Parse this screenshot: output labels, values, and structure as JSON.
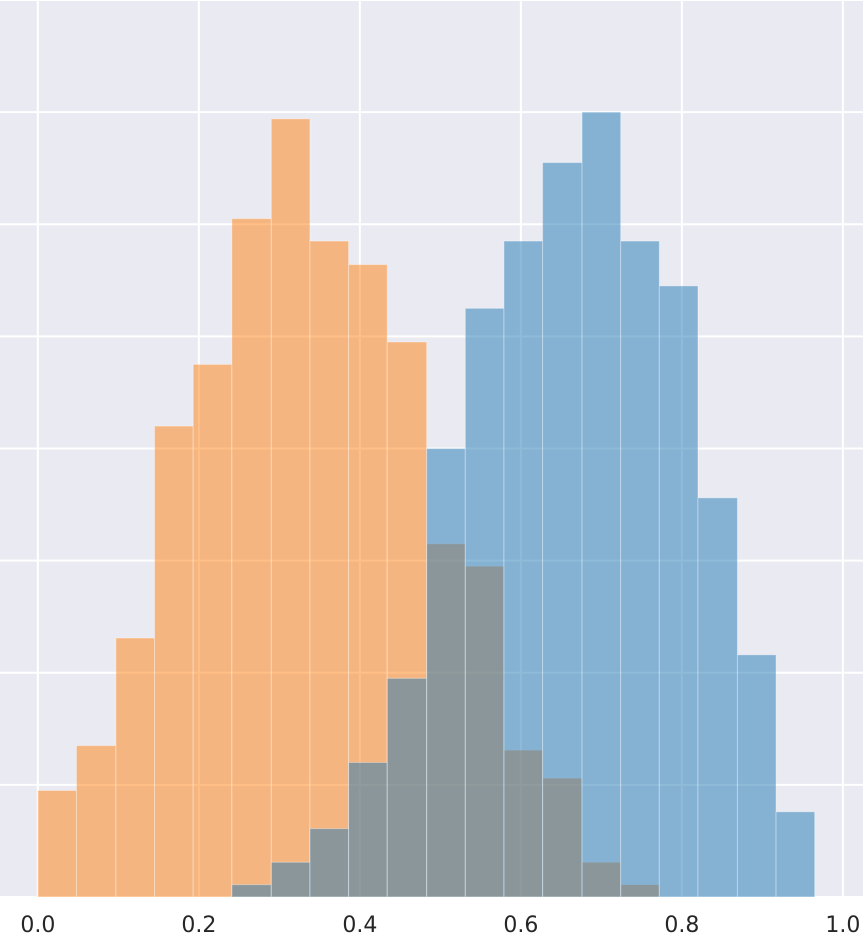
{
  "chart_data": {
    "type": "histogram",
    "bins": [
      0,
      0.048,
      0.097,
      0.145,
      0.193,
      0.241,
      0.29,
      0.338,
      0.386,
      0.434,
      0.483,
      0.531,
      0.579,
      0.627,
      0.676,
      0.724,
      0.772,
      0.82,
      0.869,
      0.917,
      0.965
    ],
    "series": [
      {
        "color": "#ff7f0e",
        "values": [
          9.5,
          13.5,
          23.1,
          42,
          47.5,
          60.5,
          69.4,
          58.5,
          56.4,
          49.5,
          31.5,
          29.5,
          13.1,
          10.6,
          3.1,
          1.1,
          0,
          0,
          0,
          0
        ]
      },
      {
        "color": "#1f77b4",
        "values": [
          0,
          0,
          0,
          0,
          0,
          1.1,
          3.1,
          6.1,
          12,
          19.5,
          40,
          52.5,
          58.5,
          65.5,
          70,
          58.5,
          54.5,
          35.6,
          21.6,
          7.6
        ]
      }
    ],
    "opacity": 0.5,
    "xlim": [
      -0.047,
      1.025
    ],
    "xticks": [
      {
        "value": 0,
        "label": "0.0"
      },
      0.2,
      0.4,
      0.6,
      0.8,
      {
        "value": 1,
        "label": "1.0"
      }
    ],
    "ylim": [
      0,
      80
    ],
    "yticks": [
      0,
      10,
      20,
      30,
      40,
      50,
      60,
      70,
      80
    ],
    "grid": true
  }
}
